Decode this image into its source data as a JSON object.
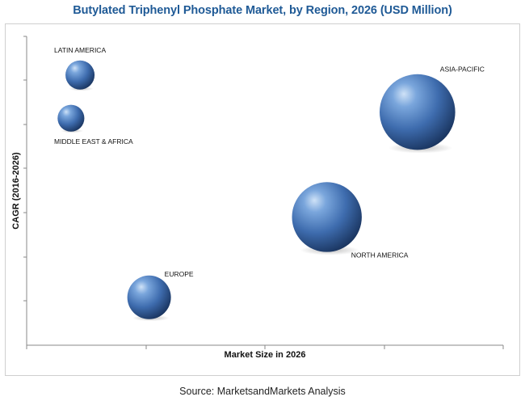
{
  "chart_data": {
    "type": "bubble",
    "title": "Butylated Triphenyl Phosphate Market, by Region, 2026 (USD Million)",
    "xlabel": "Market Size in 2026",
    "ylabel": "CAGR (2016-2026)",
    "xlim": [
      0,
      10
    ],
    "ylim": [
      0,
      10
    ],
    "grid": false,
    "legend": "none",
    "bubble_color": "#3f6fb0",
    "points": [
      {
        "label": "LATIN AMERICA",
        "x": 1.12,
        "y": 8.75,
        "size": 1.0
      },
      {
        "label": "MIDDLE EAST & AFRICA",
        "x": 0.93,
        "y": 7.35,
        "size": 0.92
      },
      {
        "label": "EUROPE",
        "x": 2.57,
        "y": 1.55,
        "size": 1.5
      },
      {
        "label": "NORTH AMERICA",
        "x": 6.3,
        "y": 4.15,
        "size": 2.4
      },
      {
        "label": "ASIA-PACIFIC",
        "x": 8.2,
        "y": 7.55,
        "size": 2.6
      }
    ]
  },
  "source_text": "Source: MarketsandMarkets Analysis"
}
